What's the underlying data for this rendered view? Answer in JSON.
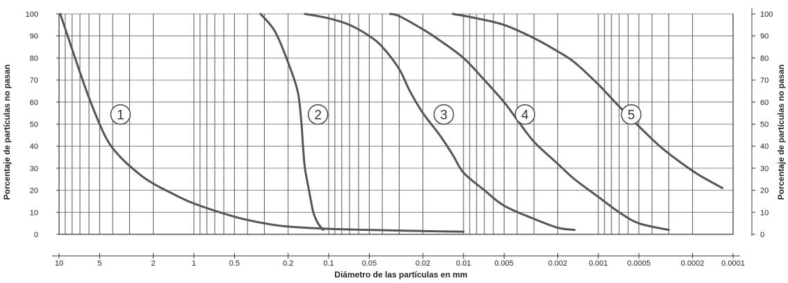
{
  "chart_data": {
    "type": "line",
    "xlabel": "Diámetro de las partículas en mm",
    "ylabel_left": "Porcentaje de partículas no pasan",
    "ylabel_right": "Porcentaje de partículas no pasan",
    "x_scale": "log",
    "x_reversed": true,
    "xlim": [
      10,
      0.0001
    ],
    "ylim": [
      0,
      100
    ],
    "y_ticks_left": [
      "0",
      "10",
      "20",
      "30",
      "40",
      "50",
      "60",
      "70",
      "80",
      "90",
      "100"
    ],
    "y_ticks_right": [
      "100",
      "90",
      "80",
      "70",
      "60",
      "50",
      "40",
      "30",
      "20",
      "10",
      "0"
    ],
    "x_ticks": [
      {
        "value": 10,
        "label": "10"
      },
      {
        "value": 5,
        "label": "5"
      },
      {
        "value": 2,
        "label": "2"
      },
      {
        "value": 1,
        "label": "1"
      },
      {
        "value": 0.5,
        "label": "0.5"
      },
      {
        "value": 0.2,
        "label": "0.2"
      },
      {
        "value": 0.1,
        "label": "0.1"
      },
      {
        "value": 0.05,
        "label": "0.05"
      },
      {
        "value": 0.02,
        "label": "0.02"
      },
      {
        "value": 0.01,
        "label": "0.01"
      },
      {
        "value": 0.005,
        "label": "0.005"
      },
      {
        "value": 0.002,
        "label": "0.002"
      },
      {
        "value": 0.001,
        "label": "0.001"
      },
      {
        "value": 0.0005,
        "label": "0.0005"
      },
      {
        "value": 0.0002,
        "label": "0.0002"
      },
      {
        "value": 0.0001,
        "label": "0.0001"
      }
    ],
    "grid": true,
    "line_color": "#555555",
    "series": [
      {
        "name": "1",
        "label_at": {
          "x": 3.5,
          "y": 55
        },
        "points": [
          [
            9.8,
            100
          ],
          [
            8,
            84
          ],
          [
            6,
            62
          ],
          [
            4.5,
            44
          ],
          [
            3.5,
            35
          ],
          [
            2.5,
            27
          ],
          [
            2,
            23
          ],
          [
            1.5,
            19
          ],
          [
            1,
            14
          ],
          [
            0.5,
            8
          ],
          [
            0.3,
            5
          ],
          [
            0.2,
            3.5
          ],
          [
            0.1,
            2.5
          ],
          [
            0.05,
            2
          ],
          [
            0.02,
            1.5
          ],
          [
            0.01,
            1.2
          ]
        ]
      },
      {
        "name": "2",
        "label_at": {
          "x": 0.12,
          "y": 55
        },
        "points": [
          [
            0.32,
            100
          ],
          [
            0.25,
            92
          ],
          [
            0.2,
            78
          ],
          [
            0.17,
            65
          ],
          [
            0.16,
            52
          ],
          [
            0.155,
            40
          ],
          [
            0.15,
            30
          ],
          [
            0.14,
            20
          ],
          [
            0.13,
            10
          ],
          [
            0.12,
            5
          ],
          [
            0.11,
            2
          ]
        ]
      },
      {
        "name": "3",
        "label_at": {
          "x": 0.014,
          "y": 55
        },
        "points": [
          [
            0.15,
            100
          ],
          [
            0.1,
            98
          ],
          [
            0.07,
            95
          ],
          [
            0.05,
            90
          ],
          [
            0.04,
            85
          ],
          [
            0.03,
            75
          ],
          [
            0.025,
            65
          ],
          [
            0.02,
            55
          ],
          [
            0.015,
            45
          ],
          [
            0.012,
            36
          ],
          [
            0.01,
            28
          ],
          [
            0.007,
            20
          ],
          [
            0.005,
            13
          ],
          [
            0.003,
            7
          ],
          [
            0.002,
            3
          ],
          [
            0.0015,
            2
          ]
        ]
      },
      {
        "name": "4",
        "label_at": {
          "x": 0.0035,
          "y": 55
        },
        "points": [
          [
            0.035,
            100
          ],
          [
            0.03,
            99
          ],
          [
            0.02,
            93
          ],
          [
            0.015,
            88
          ],
          [
            0.01,
            80
          ],
          [
            0.007,
            70
          ],
          [
            0.005,
            60
          ],
          [
            0.004,
            52
          ],
          [
            0.003,
            42
          ],
          [
            0.002,
            32
          ],
          [
            0.0015,
            25
          ],
          [
            0.001,
            17
          ],
          [
            0.0007,
            10
          ],
          [
            0.0005,
            5
          ],
          [
            0.0003,
            2
          ]
        ]
      },
      {
        "name": "5",
        "label_at": {
          "x": 0.00057,
          "y": 55
        },
        "points": [
          [
            0.012,
            100
          ],
          [
            0.008,
            98
          ],
          [
            0.005,
            95
          ],
          [
            0.003,
            89
          ],
          [
            0.002,
            83
          ],
          [
            0.0015,
            78
          ],
          [
            0.001,
            68
          ],
          [
            0.0007,
            58
          ],
          [
            0.0005,
            49
          ],
          [
            0.00035,
            40
          ],
          [
            0.00025,
            33
          ],
          [
            0.00018,
            27
          ],
          [
            0.00012,
            21
          ]
        ]
      }
    ]
  }
}
